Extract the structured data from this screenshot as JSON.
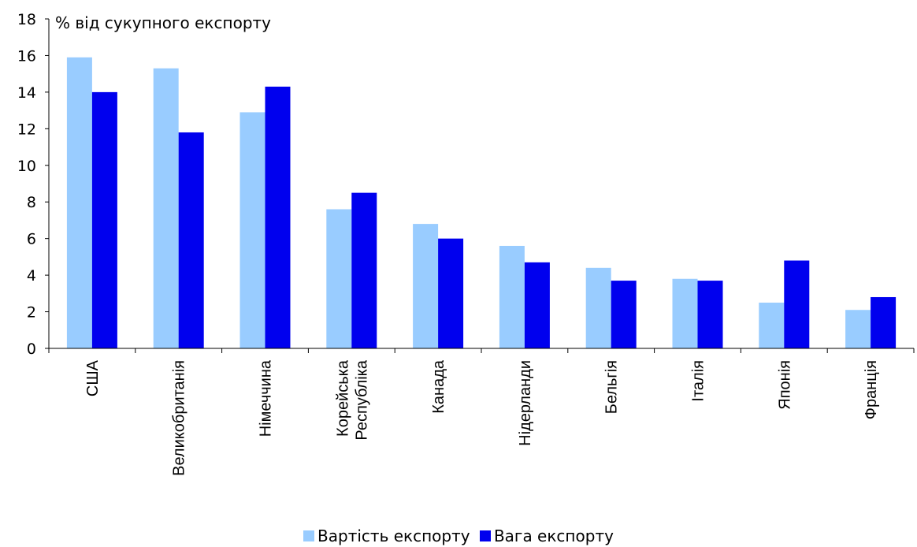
{
  "chart_data": {
    "type": "bar",
    "ylabel": "% від сукупного експорту",
    "xlabel": "",
    "ylim": [
      0,
      18
    ],
    "yticks": [
      0,
      2,
      4,
      6,
      8,
      10,
      12,
      14,
      16,
      18
    ],
    "categories": [
      "США",
      "Великобританія",
      "Німеччина",
      "Корейська Республіка",
      "Канада",
      "Нідерланди",
      "Бельгія",
      "Італія",
      "Японія",
      "Франція"
    ],
    "series": [
      {
        "name": "Вартість експорту",
        "color": "#99ccff",
        "values": [
          15.9,
          15.3,
          12.9,
          7.6,
          6.8,
          5.6,
          4.4,
          3.8,
          2.5,
          2.1
        ]
      },
      {
        "name": "Вага експорту",
        "color": "#0000ee",
        "values": [
          14.0,
          11.8,
          14.3,
          8.5,
          6.0,
          4.7,
          3.7,
          3.7,
          4.8,
          2.8
        ]
      }
    ],
    "grid": false,
    "legend_position": "bottom"
  }
}
